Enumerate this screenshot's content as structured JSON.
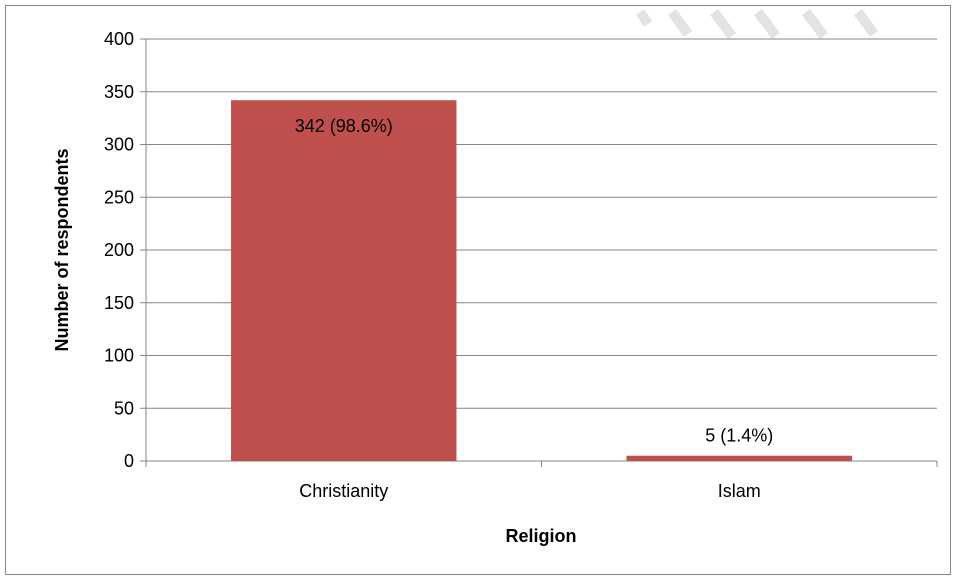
{
  "chart_data": {
    "type": "bar",
    "categories": [
      "Christianity",
      "Islam"
    ],
    "values": [
      342,
      5
    ],
    "data_labels": [
      "342 (98.6%)",
      "5 (1.4%)"
    ],
    "title": "",
    "xlabel": "Religion",
    "ylabel": "Number of respondents",
    "ylim": [
      0,
      400
    ],
    "yticks": [
      0,
      50,
      100,
      150,
      200,
      250,
      300,
      350,
      400
    ],
    "grid": true,
    "legend": "none",
    "bar_color": "#c0504d",
    "gridline_color": "#868686"
  }
}
